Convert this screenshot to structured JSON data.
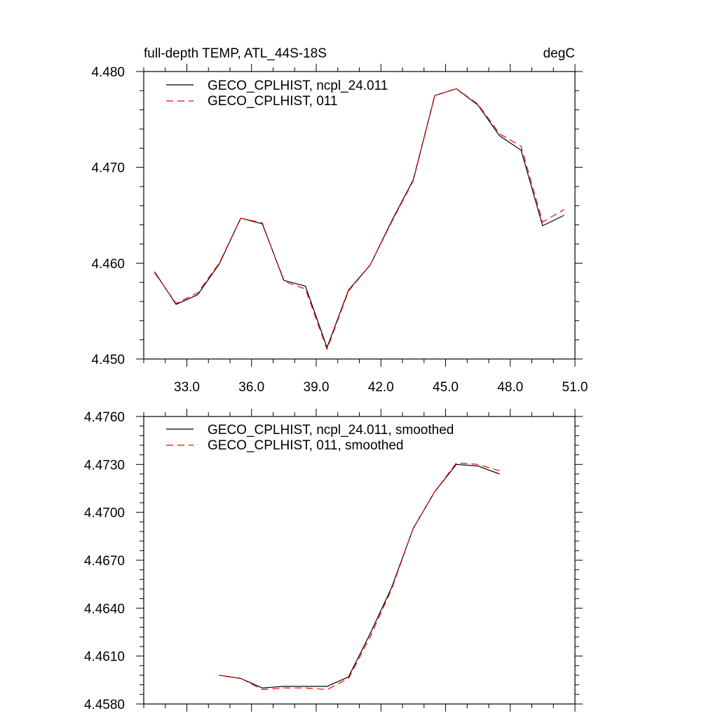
{
  "chart_data": [
    {
      "type": "line",
      "title": "full-depth TEMP, ATL_44S-18S",
      "units": "degC",
      "xlim": [
        31.0,
        51.0
      ],
      "ylim": [
        4.45,
        4.48
      ],
      "xticks": [
        33.0,
        36.0,
        39.0,
        42.0,
        45.0,
        48.0,
        51.0
      ],
      "xtick_labels": [
        "33.0",
        "36.0",
        "39.0",
        "42.0",
        "45.0",
        "48.0",
        "51.0"
      ],
      "yticks": [
        4.45,
        4.46,
        4.47,
        4.48
      ],
      "ytick_labels": [
        "4.450",
        "4.460",
        "4.470",
        "4.480"
      ],
      "legend_position": "top-left",
      "x": [
        31.5,
        32.5,
        33.5,
        34.5,
        35.5,
        36.5,
        37.5,
        38.5,
        39.5,
        40.5,
        41.5,
        42.5,
        43.5,
        44.5,
        45.5,
        46.5,
        47.5,
        48.5,
        49.5,
        50.5
      ],
      "series": [
        {
          "name": "GECO_CPLHIST, ncpl_24.011",
          "color": "#000000",
          "style": "solid",
          "values": [
            4.4591,
            4.4557,
            4.4567,
            4.4599,
            4.4647,
            4.4641,
            4.4582,
            4.4576,
            4.4512,
            4.4572,
            4.4598,
            4.4644,
            4.4687,
            4.4775,
            4.4782,
            4.4765,
            4.4733,
            4.4718,
            4.4639,
            4.465
          ]
        },
        {
          "name": "GECO_CPLHIST, 011",
          "color": "#ff0000",
          "style": "dashed",
          "values": [
            4.459,
            4.4558,
            4.4569,
            4.46,
            4.4647,
            4.4642,
            4.4581,
            4.4573,
            4.451,
            4.4571,
            4.4598,
            4.4643,
            4.4686,
            4.4775,
            4.4782,
            4.4766,
            4.4735,
            4.4722,
            4.4643,
            4.4656
          ]
        }
      ]
    },
    {
      "type": "line",
      "xlim": [
        31.0,
        51.0
      ],
      "ylim": [
        4.458,
        4.476
      ],
      "xticks": [
        33.0,
        36.0,
        39.0,
        42.0,
        45.0,
        48.0,
        51.0
      ],
      "yticks": [
        4.458,
        4.461,
        4.464,
        4.467,
        4.47,
        4.473,
        4.476
      ],
      "ytick_labels": [
        "4.4580",
        "4.4610",
        "4.4640",
        "4.4670",
        "4.4700",
        "4.4730",
        "4.4760"
      ],
      "legend_position": "top-left",
      "x": [
        34.5,
        35.5,
        36.5,
        37.5,
        38.5,
        39.5,
        40.5,
        41.5,
        42.5,
        43.5,
        44.5,
        45.5,
        46.5,
        47.5
      ],
      "series": [
        {
          "name": "GECO_CPLHIST, ncpl_24.011, smoothed",
          "color": "#000000",
          "style": "solid",
          "values": [
            4.4598,
            4.4596,
            4.459,
            4.4591,
            4.4591,
            4.4591,
            4.4597,
            4.4624,
            4.4653,
            4.469,
            4.4713,
            4.473,
            4.4729,
            4.4724
          ]
        },
        {
          "name": "GECO_CPLHIST, 011, smoothed",
          "color": "#ff0000",
          "style": "dashed",
          "values": [
            4.4598,
            4.4596,
            4.4589,
            4.459,
            4.459,
            4.4589,
            4.4596,
            4.4622,
            4.4652,
            4.469,
            4.4713,
            4.4731,
            4.473,
            4.4726
          ]
        }
      ]
    }
  ]
}
